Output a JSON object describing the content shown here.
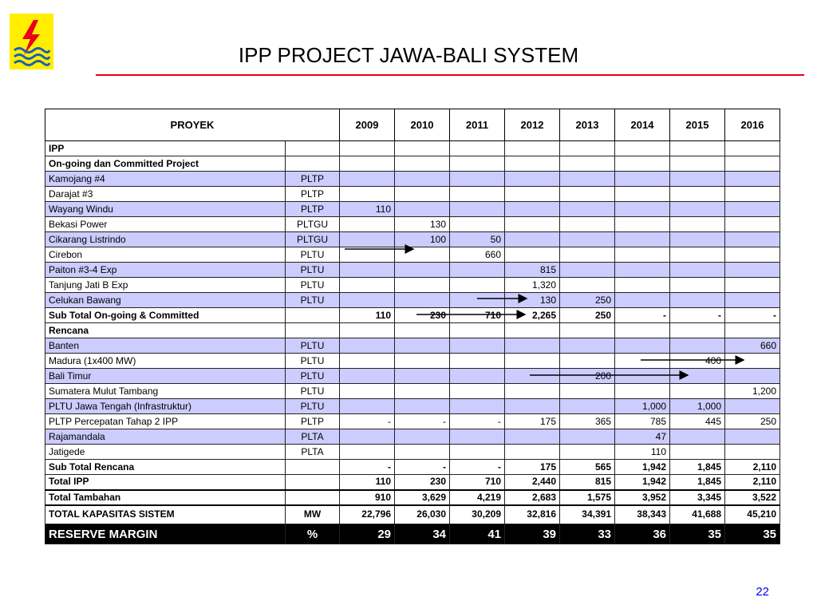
{
  "header": {
    "title": "IPP PROJECT JAWA-BALI SYSTEM"
  },
  "footer": {
    "page_number": "22"
  },
  "table": {
    "project_header": "PROYEK",
    "years": [
      "2009",
      "2010",
      "2011",
      "2012",
      "2013",
      "2014",
      "2015",
      "2016"
    ],
    "rows": [
      {
        "label": "IPP",
        "type": "",
        "values": [
          "",
          "",
          "",
          "",
          "",
          "",
          "",
          ""
        ],
        "style": "section"
      },
      {
        "label": "On-going dan Committed Project",
        "type": "",
        "values": [
          "",
          "",
          "",
          "",
          "",
          "",
          "",
          ""
        ],
        "style": "subsection"
      },
      {
        "label": "Kamojang #4",
        "type": "PLTP",
        "values": [
          "",
          "",
          "",
          "",
          "",
          "",
          "",
          ""
        ],
        "style": "blue"
      },
      {
        "label": "Darajat #3",
        "type": "PLTP",
        "values": [
          "",
          "",
          "",
          "",
          "",
          "",
          "",
          ""
        ],
        "style": "white"
      },
      {
        "label": "Wayang Windu",
        "type": "PLTP",
        "values": [
          "110",
          "",
          "",
          "",
          "",
          "",
          "",
          ""
        ],
        "style": "blue"
      },
      {
        "label": "Bekasi Power",
        "type": "PLTGU",
        "values": [
          "",
          "130",
          "",
          "",
          "",
          "",
          "",
          ""
        ],
        "style": "white"
      },
      {
        "label": "Cikarang Listrindo",
        "type": "PLTGU",
        "values": [
          "",
          "100",
          "50",
          "",
          "",
          "",
          "",
          ""
        ],
        "style": "blue"
      },
      {
        "label": "Cirebon",
        "type": "PLTU",
        "values": [
          "",
          "",
          "660",
          "",
          "",
          "",
          "",
          ""
        ],
        "style": "white"
      },
      {
        "label": "Paiton #3-4 Exp",
        "type": "PLTU",
        "values": [
          "",
          "",
          "",
          "815",
          "",
          "",
          "",
          ""
        ],
        "style": "blue"
      },
      {
        "label": "Tanjung Jati B Exp",
        "type": "PLTU",
        "values": [
          "",
          "",
          "",
          "1,320",
          "",
          "",
          "",
          ""
        ],
        "style": "white"
      },
      {
        "label": "Celukan Bawang",
        "type": "PLTU",
        "values": [
          "",
          "",
          "",
          "130",
          "250",
          "",
          "",
          ""
        ],
        "style": "blue"
      },
      {
        "label": "Sub Total On-going & Committed",
        "type": "",
        "values": [
          "110",
          "230",
          "710",
          "2,265",
          "250",
          "-",
          "-",
          "-"
        ],
        "style": "subtotal"
      },
      {
        "label": "Rencana",
        "type": "",
        "values": [
          "",
          "",
          "",
          "",
          "",
          "",
          "",
          ""
        ],
        "style": "subsection"
      },
      {
        "label": "Banten",
        "type": "PLTU",
        "values": [
          "",
          "",
          "",
          "",
          "",
          "",
          "",
          "660"
        ],
        "style": "blue"
      },
      {
        "label": "Madura (1x400 MW)",
        "type": "PLTU",
        "values": [
          "",
          "",
          "",
          "",
          "",
          "",
          "400",
          ""
        ],
        "style": "white"
      },
      {
        "label": "Bali Timur",
        "type": "PLTU",
        "values": [
          "",
          "",
          "",
          "",
          "200",
          "",
          "",
          ""
        ],
        "style": "blue"
      },
      {
        "label": "Sumatera Mulut Tambang",
        "type": "PLTU",
        "values": [
          "",
          "",
          "",
          "",
          "",
          "",
          "",
          "1,200"
        ],
        "style": "white"
      },
      {
        "label": "PLTU Jawa Tengah (Infrastruktur)",
        "type": "PLTU",
        "values": [
          "",
          "",
          "",
          "",
          "",
          "1,000",
          "1,000",
          ""
        ],
        "style": "blue"
      },
      {
        "label": "PLTP Percepatan Tahap 2 IPP",
        "type": "PLTP",
        "values": [
          "-",
          "-",
          "-",
          "175",
          "365",
          "785",
          "445",
          "250"
        ],
        "style": "white"
      },
      {
        "label": "Rajamandala",
        "type": "PLTA",
        "values": [
          "",
          "",
          "",
          "",
          "",
          "47",
          "",
          ""
        ],
        "style": "blue"
      },
      {
        "label": "Jatigede",
        "type": "PLTA",
        "values": [
          "",
          "",
          "",
          "",
          "",
          "110",
          "",
          ""
        ],
        "style": "white"
      },
      {
        "label": "Sub Total Rencana",
        "type": "",
        "values": [
          "-",
          "-",
          "-",
          "175",
          "565",
          "1,942",
          "1,845",
          "2,110"
        ],
        "style": "subtotal"
      },
      {
        "label": "Total IPP",
        "type": "",
        "values": [
          "110",
          "230",
          "710",
          "2,440",
          "815",
          "1,942",
          "1,845",
          "2,110"
        ],
        "style": "subtotal"
      },
      {
        "label": "Total Tambahan",
        "type": "",
        "values": [
          "910",
          "3,629",
          "4,219",
          "2,683",
          "1,575",
          "3,952",
          "3,345",
          "3,522"
        ],
        "style": "total"
      },
      {
        "label": "TOTAL KAPASITAS SISTEM",
        "type": "MW",
        "values": [
          "22,796",
          "26,030",
          "30,209",
          "32,816",
          "34,391",
          "38,343",
          "41,688",
          "45,210"
        ],
        "style": "grand"
      },
      {
        "label": "RESERVE MARGIN",
        "type": "%",
        "values": [
          "29",
          "34",
          "41",
          "39",
          "33",
          "36",
          "35",
          "35"
        ],
        "style": "reserve"
      }
    ]
  },
  "colors": {
    "row_highlight": "#ccccff",
    "title_rule": "#e8001c",
    "logo_bg": "#ffee00",
    "logo_mark": "#e8001c",
    "logo_wave": "#1a5fb4",
    "page_number": "#0000ff"
  }
}
